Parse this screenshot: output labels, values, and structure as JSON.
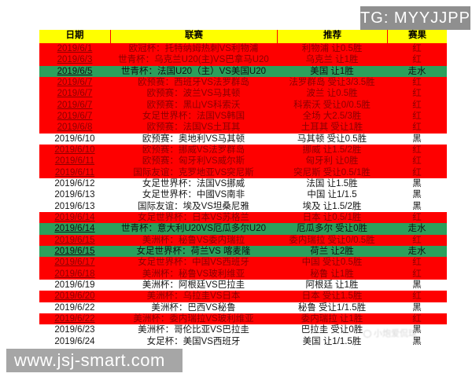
{
  "badge": {
    "tg_label": "TG: MYYJJPP"
  },
  "watermarks": {
    "site": "www.jsj-smart.com",
    "photo_credit": "小炮爱侃球"
  },
  "colors": {
    "header_yellow": "#ffff00",
    "win_red": "#fe0000",
    "void_green": "#2ba05c",
    "lose_white": "#ffffff",
    "red_row_text": "#8b0000"
  },
  "table": {
    "headers": [
      "日期",
      "联赛",
      "推荐",
      "赛果"
    ],
    "rows": [
      {
        "date": "2019/6/1",
        "league": "欧冠杯：托特纳姆热刺VS利物浦",
        "tip": "利物浦 让0.5胜",
        "result": "红",
        "bg": "red"
      },
      {
        "date": "2019/6/3",
        "league": "世青杯：乌克兰U20(主)VS巴拿马U20",
        "tip": "乌克兰 让1胜",
        "result": "红",
        "bg": "red"
      },
      {
        "date": "2019/6/5",
        "league": "世青杯：法国U20（主）VS美国U20",
        "tip": "美国 让1胜",
        "result": "走水",
        "bg": "green"
      },
      {
        "date": "2019/6/7",
        "league": "欧预赛：西班牙VS法罗群岛",
        "tip": "法罗群岛 受让3/3.5胜",
        "result": "红",
        "bg": "red"
      },
      {
        "date": "2019/6/7",
        "league": "欧预赛：波兰VS马其顿",
        "tip": "波兰 让0.5胜",
        "result": "红",
        "bg": "red"
      },
      {
        "date": "2019/6/7",
        "league": "欧预赛：黑山VS科索沃",
        "tip": "科索沃 受让0/0.5胜",
        "result": "红",
        "bg": "red"
      },
      {
        "date": "2019/6/7",
        "league": "女足世界杯：法国VS韩国",
        "tip": "全场 大2.5/3胜",
        "result": "红",
        "bg": "red"
      },
      {
        "date": "2019/6/8",
        "league": "欧预赛：法国VS土耳其",
        "tip": "土耳其 受让1胜",
        "result": "红",
        "bg": "red"
      },
      {
        "date": "2019/6/10",
        "league": "欧预赛：奥地利VS马其顿",
        "tip": "马其顿 受让0.5胜",
        "result": "黑",
        "bg": "white"
      },
      {
        "date": "2019/6/10",
        "league": "欧预赛：挪威VS法罗群岛",
        "tip": "挪威 让1.5/2胜",
        "result": "红",
        "bg": "red"
      },
      {
        "date": "2019/6/11",
        "league": "欧预赛：匈牙利VS威尔斯",
        "tip": "匈牙利 让0胜",
        "result": "红",
        "bg": "red"
      },
      {
        "date": "2019/6/11",
        "league": "国际友谊：克罗地亚VS突尼斯",
        "tip": "突尼斯 受让0.5/1胜",
        "result": "红",
        "bg": "red"
      },
      {
        "date": "2019/6/12",
        "league": "女足世界杯：法国VS挪威",
        "tip": "法国 让1.5胜",
        "result": "黑",
        "bg": "white"
      },
      {
        "date": "2019/6/13",
        "league": "女足世界杯：中國VS南非",
        "tip": "中国 让1/1.5",
        "result": "黑",
        "bg": "white"
      },
      {
        "date": "2019/6/13",
        "league": "国际友谊：埃及VS坦桑尼雅",
        "tip": "埃及 让1.5/2胜",
        "result": "黑",
        "bg": "white"
      },
      {
        "date": "2019/6/14",
        "league": "女足世界杯：日本VS苏格兰",
        "tip": "日本 让0.5/1胜",
        "result": "红",
        "bg": "red"
      },
      {
        "date": "2019/6/14",
        "league": "世青杯：意大利U20VS厄瓜多尔U20",
        "tip": "厄瓜多尔 受让0胜",
        "result": "走水",
        "bg": "green"
      },
      {
        "date": "2019/6/15",
        "league": "美洲杯：秘鲁VS委内瑞拉",
        "tip": "委内瑞拉 受让0/0.5胜",
        "result": "红",
        "bg": "red"
      },
      {
        "date": "2019/6/15",
        "league": "女足世界杯：荷兰VS 喀麦隆",
        "tip": "荷兰 让2胜",
        "result": "走水",
        "bg": "green"
      },
      {
        "date": "2019/6/17",
        "league": "女足世界杯：中国VS西班牙",
        "tip": "中国 受让0.5胜",
        "result": "红",
        "bg": "red"
      },
      {
        "date": "2019/6/18",
        "league": "美洲杯：秘鲁VS玻利维亚",
        "tip": "秘鲁 让1胜",
        "result": "红",
        "bg": "red"
      },
      {
        "date": "2019/6/19",
        "league": "美洲杯：阿根廷VS巴拉圭",
        "tip": "阿根廷 让1胜",
        "result": "黑",
        "bg": "white"
      },
      {
        "date": "2019/6/20",
        "league": "美洲杯：乌拉圭VS日本",
        "tip": "日本 受让1.5胜",
        "result": "红",
        "bg": "red"
      },
      {
        "date": "2019/6/22",
        "league": "美洲杯：巴西VS秘鲁",
        "tip": "秘鲁 受让1/1.5胜",
        "result": "黑",
        "bg": "white"
      },
      {
        "date": "2019/6/22",
        "league": "美洲杯：委内瑞拉VS玻利维亚",
        "tip": "委内瑞拉 让1胜",
        "result": "红",
        "bg": "red"
      },
      {
        "date": "2019/6/23",
        "league": "美洲杯：哥伦比亚VS巴拉圭",
        "tip": "巴拉圭 受让0胜",
        "result": "黑",
        "bg": "white"
      },
      {
        "date": "2019/6/24",
        "league": "女足杯：美国VS西班牙",
        "tip": "美国 让1/1.5胜",
        "result": "黑",
        "bg": "white"
      }
    ]
  }
}
